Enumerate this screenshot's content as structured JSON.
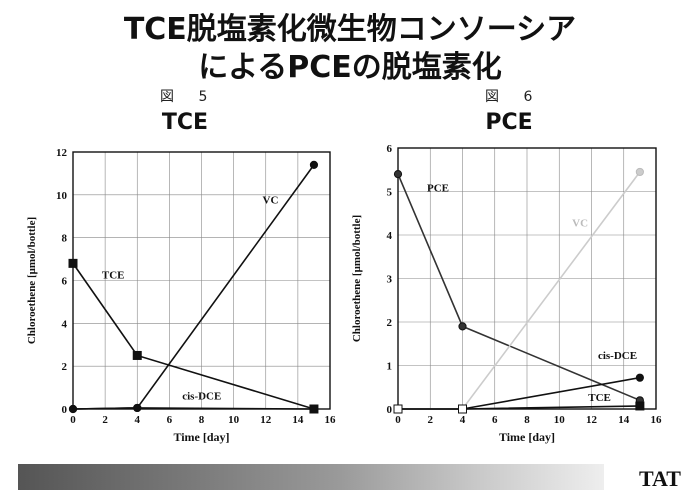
{
  "slide": {
    "title_line1": "TCE脱塩素化微生物コンソーシア",
    "title_line2": "によるPCEの脱塩素化",
    "logo_text": "TAT"
  },
  "figures": [
    {
      "fig_label": "図 5",
      "name": "TCE"
    },
    {
      "fig_label": "図 6",
      "name": "PCE"
    }
  ],
  "chart_data": [
    {
      "type": "line",
      "title": "TCE",
      "xlabel": "Time [day]",
      "ylabel": "Chloroethene [μmol/bottle]",
      "xlim": [
        0,
        16
      ],
      "ylim": [
        0,
        12
      ],
      "xticks": [
        0,
        2,
        4,
        6,
        8,
        10,
        12,
        14,
        16
      ],
      "yticks": [
        0,
        2,
        4,
        6,
        8,
        10,
        12
      ],
      "grid": true,
      "series": [
        {
          "name": "TCE",
          "marker": "square",
          "color": "#111111",
          "x": [
            0,
            4,
            15
          ],
          "y": [
            6.8,
            2.5,
            0.0
          ]
        },
        {
          "name": "VC",
          "marker": "circle",
          "color": "#111111",
          "x": [
            0,
            4,
            15
          ],
          "y": [
            0.0,
            0.05,
            11.4
          ]
        },
        {
          "name": "cis-DCE",
          "marker": "circle",
          "color": "#111111",
          "x": [
            0,
            4,
            15
          ],
          "y": [
            0.0,
            0.05,
            0.0
          ]
        }
      ],
      "annotations": [
        {
          "text": "VC",
          "x": 11.8,
          "y": 9.6
        },
        {
          "text": "TCE",
          "x": 1.8,
          "y": 6.1
        },
        {
          "text": "cis-DCE",
          "x": 6.8,
          "y": 0.45
        }
      ]
    },
    {
      "type": "line",
      "title": "PCE",
      "xlabel": "Time [day]",
      "ylabel": "Chloroethene [μmol/bottle]",
      "xlim": [
        0,
        16
      ],
      "ylim": [
        0,
        6
      ],
      "xticks": [
        0,
        2,
        4,
        6,
        8,
        10,
        12,
        14,
        16
      ],
      "yticks": [
        0,
        1,
        2,
        3,
        4,
        5,
        6
      ],
      "grid": true,
      "series": [
        {
          "name": "PCE",
          "marker": "circle",
          "color": "#333333",
          "x": [
            0,
            4,
            15
          ],
          "y": [
            5.4,
            1.9,
            0.2
          ]
        },
        {
          "name": "VC",
          "marker": "circle",
          "color": "#cccccc",
          "x": [
            0,
            4,
            15
          ],
          "y": [
            0.0,
            0.0,
            5.45
          ]
        },
        {
          "name": "cis-DCE",
          "marker": "circle",
          "color": "#111111",
          "x": [
            0,
            4,
            15
          ],
          "y": [
            0.0,
            0.0,
            0.72
          ]
        },
        {
          "name": "TCE",
          "marker": "square",
          "color": "#111111",
          "x": [
            0,
            4,
            15
          ],
          "y": [
            0.0,
            0.0,
            0.07
          ]
        }
      ],
      "annotations": [
        {
          "text": "PCE",
          "x": 1.8,
          "y": 5.0
        },
        {
          "text": "VC",
          "x": 10.8,
          "y": 4.2
        },
        {
          "text": "cis-DCE",
          "x": 12.4,
          "y": 1.15
        },
        {
          "text": "TCE",
          "x": 11.8,
          "y": 0.18
        }
      ]
    }
  ]
}
